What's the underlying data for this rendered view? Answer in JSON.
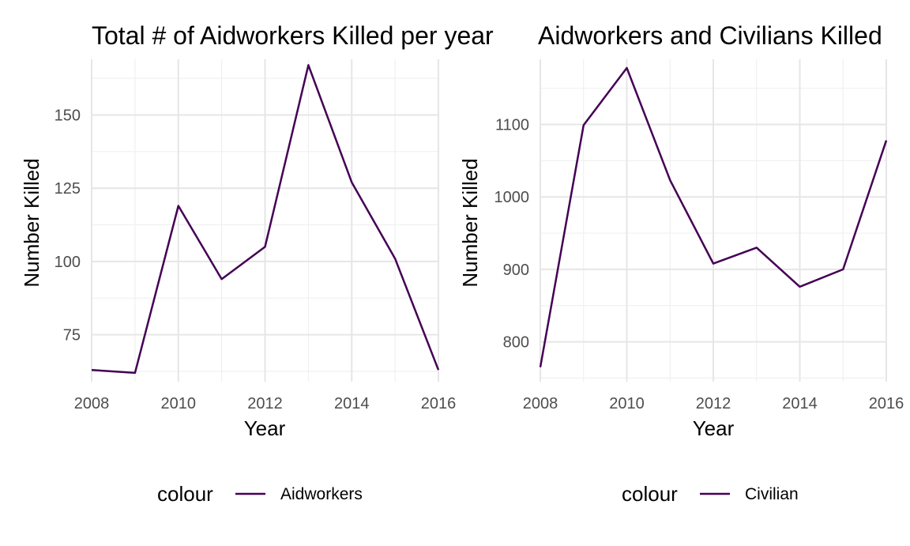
{
  "chart_data": [
    {
      "type": "line",
      "title": "Total # of Aidworkers Killed per year",
      "xlabel": "Year",
      "ylabel": "Number Killed",
      "x": [
        2008,
        2009,
        2010,
        2011,
        2012,
        2013,
        2014,
        2015,
        2016
      ],
      "series": [
        {
          "name": "Aidworkers",
          "values": [
            63,
            62,
            119,
            94,
            105,
            167,
            127,
            101,
            63
          ]
        }
      ],
      "xticks": [
        "2008",
        "2010",
        "2012",
        "2014",
        "2016"
      ],
      "yticks": [
        "75",
        "100",
        "125",
        "150"
      ],
      "xlim": [
        2008,
        2016
      ],
      "ylim": [
        59,
        169
      ],
      "grid": true,
      "legend": {
        "title": "colour",
        "position": "bottom"
      },
      "line_color": "#440154"
    },
    {
      "type": "line",
      "title": "Aidworkers and Civilians Killed",
      "xlabel": "Year",
      "ylabel": "Number Killed",
      "x": [
        2008,
        2009,
        2010,
        2011,
        2012,
        2013,
        2014,
        2015,
        2016
      ],
      "series": [
        {
          "name": "Civilian",
          "values": [
            765,
            1099,
            1178,
            1023,
            908,
            930,
            876,
            900,
            1078
          ]
        }
      ],
      "xticks": [
        "2008",
        "2010",
        "2012",
        "2014",
        "2016"
      ],
      "yticks": [
        "800",
        "900",
        "1000",
        "1100"
      ],
      "xlim": [
        2008,
        2016
      ],
      "ylim": [
        745,
        1190
      ],
      "grid": true,
      "legend": {
        "title": "colour",
        "position": "bottom"
      },
      "line_color": "#440154"
    }
  ]
}
